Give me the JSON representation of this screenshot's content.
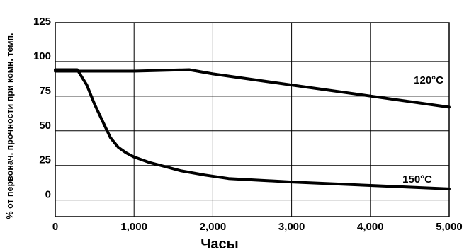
{
  "chart_data": {
    "type": "line",
    "xlabel": "Часы",
    "ylabel": "% от первонач. прочности при комн. темп.",
    "xlim": [
      0,
      5000
    ],
    "ylim": [
      -15,
      125
    ],
    "grid": true,
    "x_ticks": [
      {
        "value": 0,
        "label": "0"
      },
      {
        "value": 1000,
        "label": "1,000"
      },
      {
        "value": 2000,
        "label": "2,000"
      },
      {
        "value": 3000,
        "label": "3,000"
      },
      {
        "value": 4000,
        "label": "4,000"
      },
      {
        "value": 5000,
        "label": "5,000"
      }
    ],
    "y_ticks": [
      {
        "value": 0,
        "label": "0"
      },
      {
        "value": 25,
        "label": "25"
      },
      {
        "value": 50,
        "label": "50"
      },
      {
        "value": 75,
        "label": "75"
      },
      {
        "value": 100,
        "label": "100"
      },
      {
        "value": 125,
        "label": "125"
      }
    ],
    "series": [
      {
        "name": "120°C",
        "color": "#000000",
        "points": [
          [
            0,
            90
          ],
          [
            1000,
            90
          ],
          [
            1700,
            91
          ],
          [
            2000,
            88
          ],
          [
            3000,
            80
          ],
          [
            4000,
            72
          ],
          [
            5000,
            64
          ]
        ]
      },
      {
        "name": "150°C",
        "color": "#000000",
        "points": [
          [
            0,
            91
          ],
          [
            280,
            91
          ],
          [
            400,
            80
          ],
          [
            500,
            66
          ],
          [
            600,
            54
          ],
          [
            700,
            42
          ],
          [
            800,
            35
          ],
          [
            900,
            31
          ],
          [
            1000,
            28
          ],
          [
            1200,
            24
          ],
          [
            1400,
            21
          ],
          [
            1600,
            18
          ],
          [
            1900,
            15
          ],
          [
            2200,
            12.5
          ],
          [
            3000,
            10
          ],
          [
            4000,
            7.5
          ],
          [
            5000,
            5
          ]
        ]
      }
    ]
  }
}
